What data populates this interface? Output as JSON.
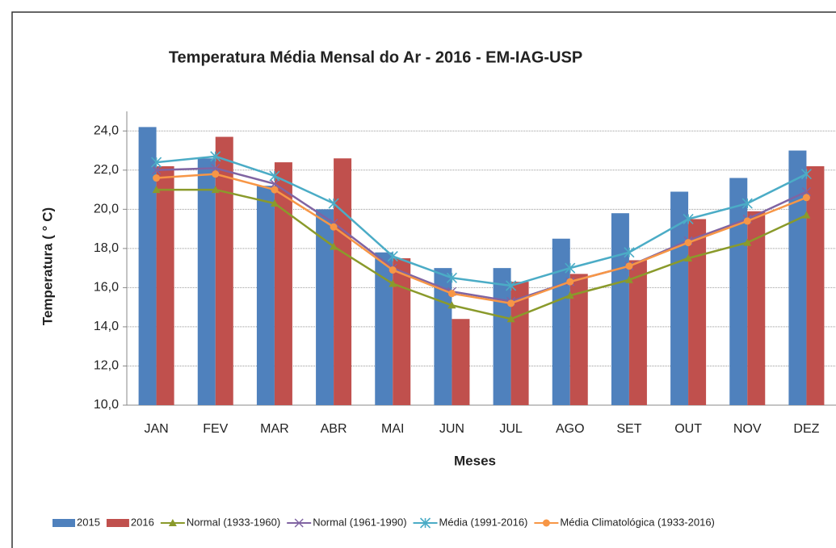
{
  "chart_data": {
    "type": "bar-line",
    "title": "Temperatura Média Mensal do Ar -  2016 - EM-IAG-USP",
    "x_label": "Meses",
    "y_label": "Temperatura ( ° C)",
    "categories": [
      "JAN",
      "FEV",
      "MAR",
      "ABR",
      "MAI",
      "JUN",
      "JUL",
      "AGO",
      "SET",
      "OUT",
      "NOV",
      "DEZ"
    ],
    "ylim": [
      10,
      25
    ],
    "yticks": [
      {
        "value": 10,
        "label": "10,0"
      },
      {
        "value": 12,
        "label": "12,0"
      },
      {
        "value": 14,
        "label": "14,0"
      },
      {
        "value": 16,
        "label": "16,0"
      },
      {
        "value": 18,
        "label": "18,0"
      },
      {
        "value": 20,
        "label": "20,0"
      },
      {
        "value": 22,
        "label": "22,0"
      },
      {
        "value": 24,
        "label": "24,0"
      }
    ],
    "grid": true,
    "legend": "bottom",
    "series": [
      {
        "name": "2015",
        "kind": "bar",
        "color": "#4f81bd",
        "values": [
          24.2,
          22.6,
          21.2,
          20.0,
          17.8,
          17.0,
          17.0,
          18.5,
          19.8,
          20.9,
          21.6,
          23.0
        ]
      },
      {
        "name": "2016",
        "kind": "bar",
        "color": "#c0504d",
        "values": [
          22.2,
          23.7,
          22.4,
          22.6,
          17.5,
          14.4,
          16.3,
          16.7,
          17.4,
          19.5,
          19.9,
          22.2
        ]
      },
      {
        "name": "Normal (1933-1960)",
        "kind": "line",
        "marker": "triangle",
        "color": "#8a9a2b",
        "values": [
          21.0,
          21.0,
          20.3,
          18.1,
          16.2,
          15.1,
          14.4,
          15.6,
          16.4,
          17.5,
          18.3,
          19.7
        ]
      },
      {
        "name": "Normal (1961-1990)",
        "kind": "line",
        "marker": "cross",
        "color": "#8064a2",
        "values": [
          22.0,
          22.1,
          21.3,
          19.3,
          17.0,
          15.8,
          15.3,
          16.3,
          17.1,
          18.4,
          19.5,
          20.9
        ]
      },
      {
        "name": "Média (1991-2016)",
        "kind": "line",
        "marker": "star",
        "color": "#4bacc6",
        "values": [
          22.4,
          22.7,
          21.7,
          20.3,
          17.6,
          16.5,
          16.1,
          17.0,
          17.8,
          19.5,
          20.3,
          21.8
        ]
      },
      {
        "name": "Média Climatológica (1933-2016)",
        "kind": "line",
        "marker": "circle",
        "color": "#f79646",
        "values": [
          21.6,
          21.8,
          21.0,
          19.1,
          16.9,
          15.7,
          15.2,
          16.3,
          17.1,
          18.3,
          19.4,
          20.6
        ]
      }
    ]
  }
}
